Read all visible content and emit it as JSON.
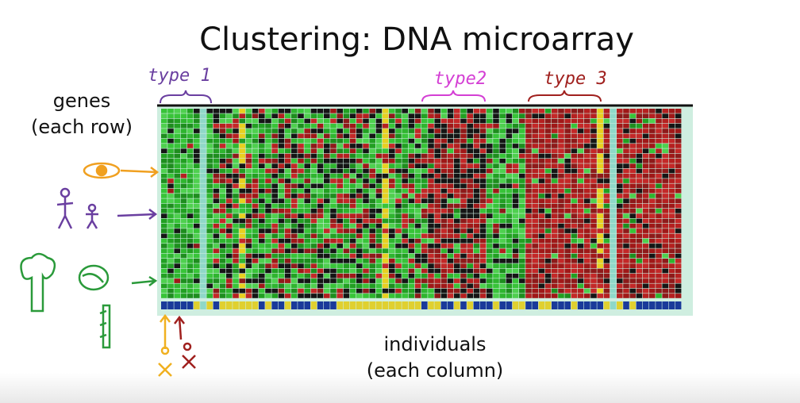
{
  "slide": {
    "title": "Clustering: DNA microarray",
    "row_label": [
      "genes",
      "(each row)"
    ],
    "column_label": [
      "individuals",
      "(each column)"
    ],
    "annotations": [
      "type 1",
      "type2",
      "type 3"
    ]
  }
}
